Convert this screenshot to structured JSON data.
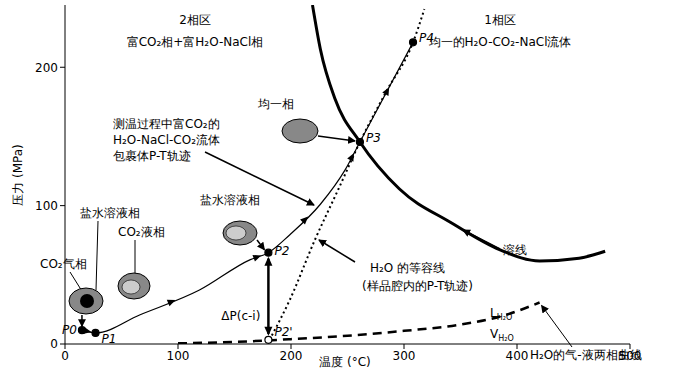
{
  "chart_data": {
    "type": "line",
    "x_label": "温度 (°C)",
    "y_label": "压力 (MPa)",
    "xlim": [
      0,
      500
    ],
    "xticks": [
      0,
      100,
      200,
      300,
      400,
      500
    ],
    "ylim": [
      0,
      245
    ],
    "yticks": [
      0,
      100,
      200
    ],
    "grid": false,
    "series": [
      {
        "label": [
          "溶线"
        ],
        "color": "#000000",
        "line_style": "solid",
        "x": [
          219,
          226,
          239,
          261,
          296,
          341,
          385,
          420,
          455,
          478
        ],
        "values": [
          245,
          213,
          177,
          146,
          112,
          88,
          68,
          60,
          62,
          67
        ]
      },
      {
        "label": [
          "H₂O 的等容线",
          "(样品腔内的P-T轨迹)"
        ],
        "color": "#000000",
        "line_style": "dotted",
        "x": [
          181,
          199,
          221,
          242,
          261,
          284,
          308,
          318
        ],
        "values": [
          3,
          32,
          75,
          112,
          146,
          182,
          218,
          242
        ]
      },
      {
        "label": [
          "测温过程中富CO₂的",
          "H₂O-NaCl-CO₂流体",
          "包裹体P-T轨迹"
        ],
        "color": "#000000",
        "line_style": "solid",
        "x": [
          15,
          27,
          66,
          119,
          164,
          180,
          199,
          226,
          248,
          261,
          308
        ],
        "values": [
          10,
          8,
          21,
          39,
          61,
          66,
          79,
          101,
          126,
          146,
          218
        ]
      },
      {
        "label": [
          "H₂O的气-液两相曲线"
        ],
        "phase_labels": [
          {
            "main": "L",
            "sub": "H₂O"
          },
          {
            "main": "V",
            "sub": "H₂O"
          }
        ],
        "color": "#000000",
        "line_style": "dashed",
        "x": [
          100,
          150,
          200,
          250,
          300,
          350,
          390,
          420
        ],
        "values": [
          0.5,
          1.5,
          3.5,
          6,
          9.5,
          14,
          21,
          30
        ]
      }
    ],
    "points": [
      {
        "label": "P0",
        "x": 15,
        "y": 10,
        "marker": "filled_circle"
      },
      {
        "label": "P1",
        "x": 27,
        "y": 8,
        "marker": "filled_circle"
      },
      {
        "label": "P2",
        "x": 180,
        "y": 66,
        "marker": "filled_circle"
      },
      {
        "label": "P2'",
        "x": 180,
        "y": 3,
        "marker": "open_circle"
      },
      {
        "label": "P3",
        "x": 261,
        "y": 146,
        "marker": "filled_circle"
      },
      {
        "label": "P4",
        "x": 308,
        "y": 218,
        "marker": "filled_circle"
      }
    ],
    "annotations": {
      "two_phase": [
        "2相区",
        "富CO₂相+富H₂O-NaCl相"
      ],
      "one_phase": [
        "1相区",
        "均一的H₂O-CO₂-NaCl流体"
      ],
      "homogeneous": "均一相",
      "brine_right": "盐水溶液相",
      "brine_left": "盐水溶液相",
      "co2_liquid": "CO₂液相",
      "co2_vapor": "CO₂气相",
      "delta_p": "ΔP(c-i)"
    }
  }
}
